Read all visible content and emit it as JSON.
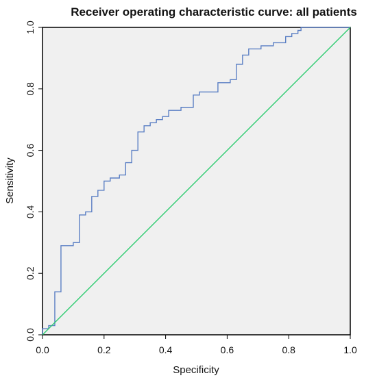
{
  "chart_data": {
    "type": "line",
    "title": "Receiver operating characteristic curve: all patients",
    "xlabel": "Specificity",
    "ylabel": "Sensitivity",
    "xlim": [
      0.0,
      1.0
    ],
    "ylim": [
      0.0,
      1.0
    ],
    "xticks": [
      "0.0",
      "0.2",
      "0.4",
      "0.6",
      "0.8",
      "1.0"
    ],
    "yticks": [
      "0.0",
      "0.2",
      "0.4",
      "0.6",
      "0.8",
      "1.0"
    ],
    "grid": false,
    "legend": "none",
    "background_color": "#f0f0f0",
    "series": [
      {
        "color": "#5b7fc4",
        "step": true,
        "x": [
          0.0,
          0.0,
          0.02,
          0.02,
          0.04,
          0.04,
          0.06,
          0.06,
          0.1,
          0.1,
          0.12,
          0.12,
          0.14,
          0.14,
          0.16,
          0.16,
          0.18,
          0.18,
          0.2,
          0.2,
          0.22,
          0.22,
          0.25,
          0.25,
          0.27,
          0.27,
          0.29,
          0.29,
          0.31,
          0.31,
          0.33,
          0.33,
          0.35,
          0.35,
          0.37,
          0.37,
          0.39,
          0.39,
          0.41,
          0.41,
          0.45,
          0.45,
          0.49,
          0.49,
          0.51,
          0.51,
          0.57,
          0.57,
          0.61,
          0.61,
          0.63,
          0.63,
          0.65,
          0.65,
          0.67,
          0.67,
          0.71,
          0.71,
          0.75,
          0.75,
          0.79,
          0.79,
          0.81,
          0.81,
          0.83,
          0.83,
          0.84,
          0.84,
          0.85,
          0.85,
          1.0
        ],
        "y": [
          0.0,
          0.02,
          0.02,
          0.03,
          0.03,
          0.14,
          0.14,
          0.29,
          0.29,
          0.3,
          0.3,
          0.39,
          0.39,
          0.4,
          0.4,
          0.45,
          0.45,
          0.47,
          0.47,
          0.5,
          0.5,
          0.51,
          0.51,
          0.52,
          0.52,
          0.56,
          0.56,
          0.6,
          0.6,
          0.66,
          0.66,
          0.68,
          0.68,
          0.69,
          0.69,
          0.7,
          0.7,
          0.71,
          0.71,
          0.73,
          0.73,
          0.74,
          0.74,
          0.78,
          0.78,
          0.79,
          0.79,
          0.82,
          0.82,
          0.83,
          0.83,
          0.88,
          0.88,
          0.91,
          0.91,
          0.93,
          0.93,
          0.94,
          0.94,
          0.95,
          0.95,
          0.97,
          0.97,
          0.98,
          0.98,
          0.99,
          0.99,
          1.0,
          1.0,
          1.0,
          1.0
        ]
      },
      {
        "color": "#2ecc71",
        "step": false,
        "x": [
          0.0,
          1.0
        ],
        "y": [
          0.0,
          1.0
        ]
      }
    ]
  }
}
